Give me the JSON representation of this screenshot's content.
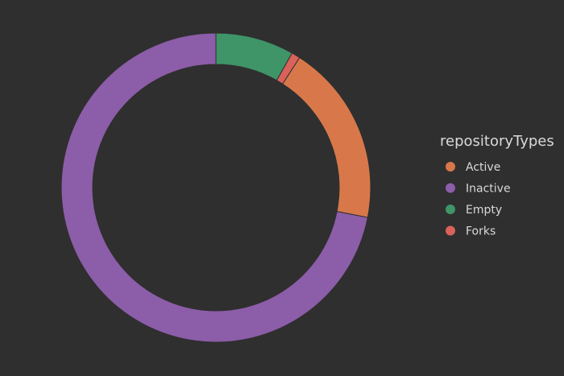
{
  "background": "#2f2f2f",
  "chart_data": {
    "type": "pie",
    "variant": "donut",
    "title": "",
    "legend": {
      "title": "repositoryTypes",
      "position": "right"
    },
    "categories": [
      "Active",
      "Inactive",
      "Empty",
      "Forks"
    ],
    "series": [
      {
        "values": [
          19.0,
          71.9,
          8.2,
          0.9
        ]
      }
    ],
    "colors": [
      "#d8784a",
      "#8c5da8",
      "#3f9468",
      "#d9625a"
    ],
    "slice_order": [
      "Empty",
      "Forks",
      "Active",
      "Inactive"
    ],
    "start_angle_deg": 0,
    "direction": "clockwise",
    "slice_stroke": "#2f2f2f"
  }
}
